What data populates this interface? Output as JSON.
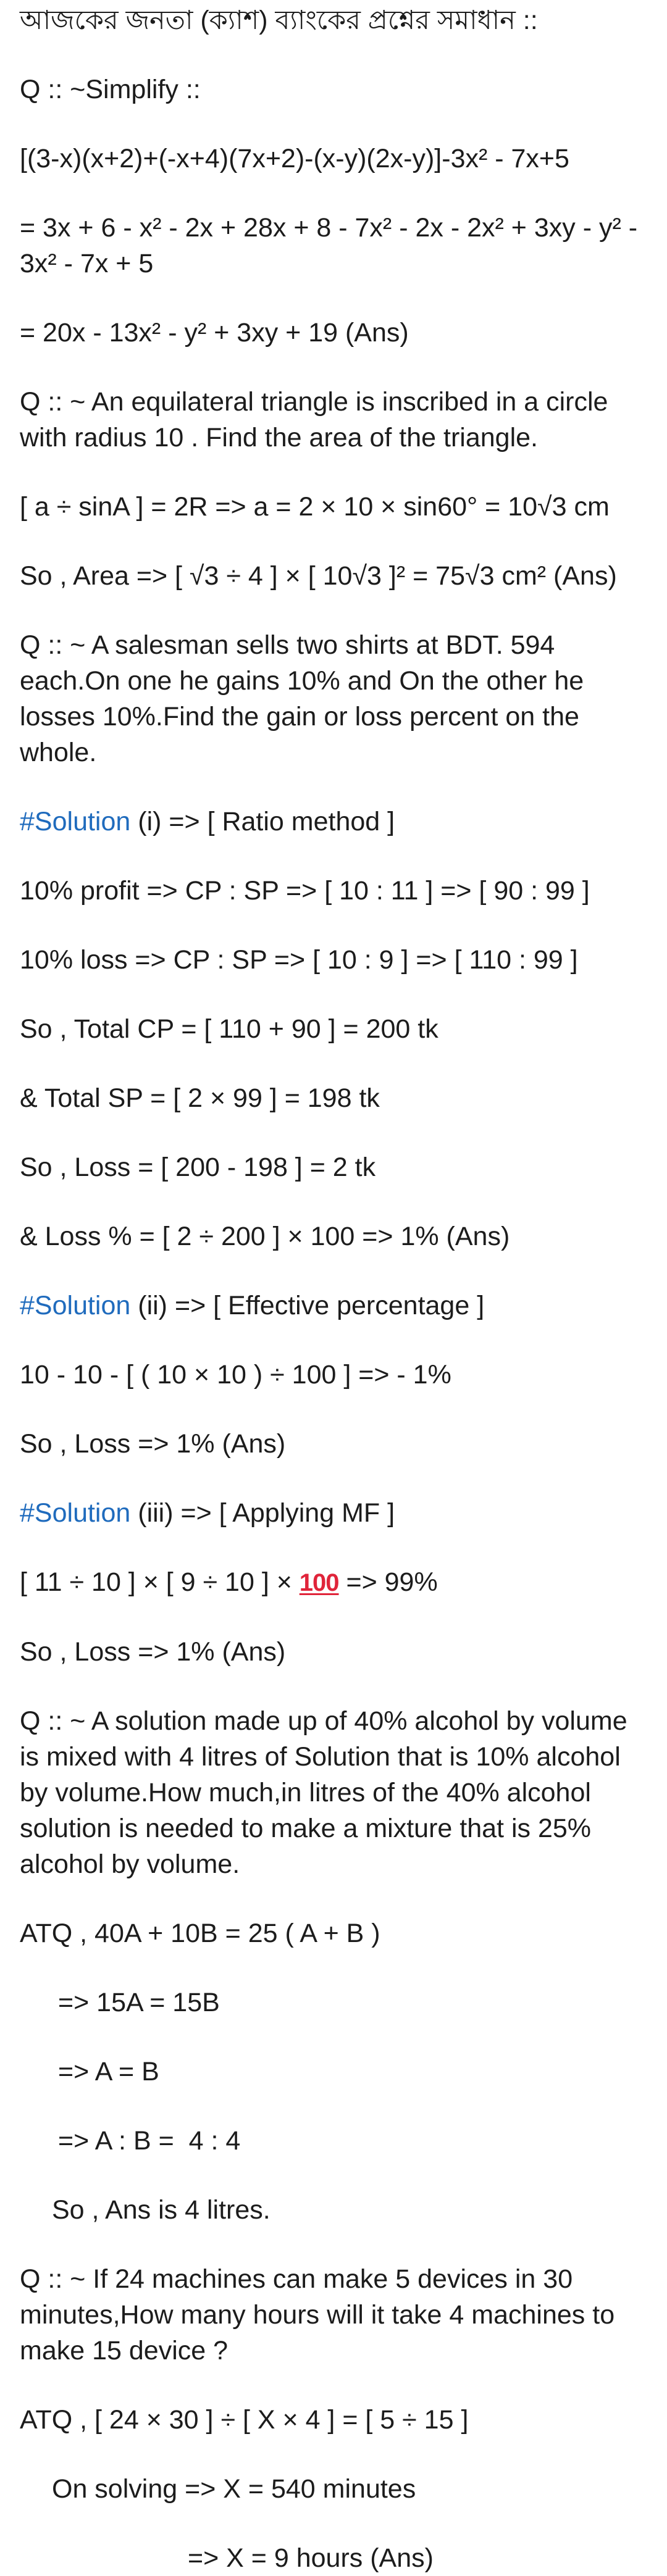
{
  "post": {
    "heading": "আজকের জনতা (ক্যাশ) ব্যাংকের প্রশ্নের সমাধান ::",
    "q1": {
      "title": "Q :: ~Simplify ::",
      "expression": "[(3-x)(x+2)+(-x+4)(7x+2)-(x-y)(2x-y)]-3x² - 7x+5",
      "step1": "= 3x + 6 - x² - 2x + 28x + 8 - 7x² - 2x - 2x² + 3xy - y² - 3x² - 7x + 5",
      "answer": "= 20x - 13x² - y² + 3xy + 19 (Ans)"
    },
    "q2": {
      "title": "Q :: ~ An equilateral triangle is inscribed in a circle with radius 10 . Find the area of the triangle.",
      "step1": "[ a ÷ sinA ] = 2R => a = 2 × 10 × sin60° = 10√3 cm",
      "answer": "So , Area => [ √3 ÷ 4 ] × [ 10√3 ]² = 75√3 cm² (Ans)"
    },
    "q3": {
      "title": "Q :: ~ A salesman sells two shirts at BDT. 594 each.On one he gains 10% and On the other he losses 10%.Find the gain or loss percent on the whole.",
      "hashtag": "#Solution",
      "sol1_label": " (i) => [ Ratio method ]",
      "profit_line": "10% profit => CP : SP => [ 10 : 11 ] => [ 90 : 99 ]",
      "loss_line": "10% loss => CP : SP => [ 10 : 9 ] => [ 110 : 99 ]",
      "total_cp": "So , Total CP = [ 110 + 90 ] = 200 tk",
      "total_sp": "& Total SP = [ 2 × 99 ] = 198 tk",
      "loss": "So , Loss = [ 200 - 198 ] = 2 tk",
      "loss_percent": "& Loss % = [ 2 ÷ 200 ] × 100 => 1% (Ans)",
      "sol2_label": " (ii) => [ Effective percentage ]",
      "effective": "10 - 10 - [ ( 10 × 10 ) ÷ 100 ] => - 1%",
      "answer2": "So , Loss => 1% (Ans)",
      "sol3_label": " (iii) => [ Applying MF ]",
      "mf_prefix": "[ 11 ÷ 10 ] × [ 9 ÷ 10 ] × ",
      "mf_emoji": "100",
      "mf_suffix": " => 99%",
      "answer3": "So , Loss => 1% (Ans)"
    },
    "q4": {
      "title": "Q :: ~ A solution made up of 40% alcohol by volume is mixed with 4 litres of Solution that is 10% alcohol by volume.How much,in litres of the 40% alcohol solution is needed to make a mixture that is 25% alcohol by volume.",
      "atq": "ATQ , 40A + 10B = 25 ( A + B )",
      "step1": "=> 15A = 15B",
      "step2": "=> A = B",
      "step3": "=> A : B =  4 : 4",
      "answer": "So , Ans is 4 litres."
    },
    "q5": {
      "title": "Q :: ~ If 24 machines can make 5 devices in 30 minutes,How many hours will it take 4 machines to make 15 device ?",
      "atq": "ATQ , [ 24 × 30 ] ÷ [ X × 4 ] = [ 5 ÷ 15 ]",
      "solving": "On solving => X = 540 minutes",
      "answer": "=> X = 9 hours (Ans)"
    }
  },
  "colors": {
    "text": "#1c1c1c",
    "hashtag": "#1f6bbd",
    "emoji": "#e0243a"
  }
}
